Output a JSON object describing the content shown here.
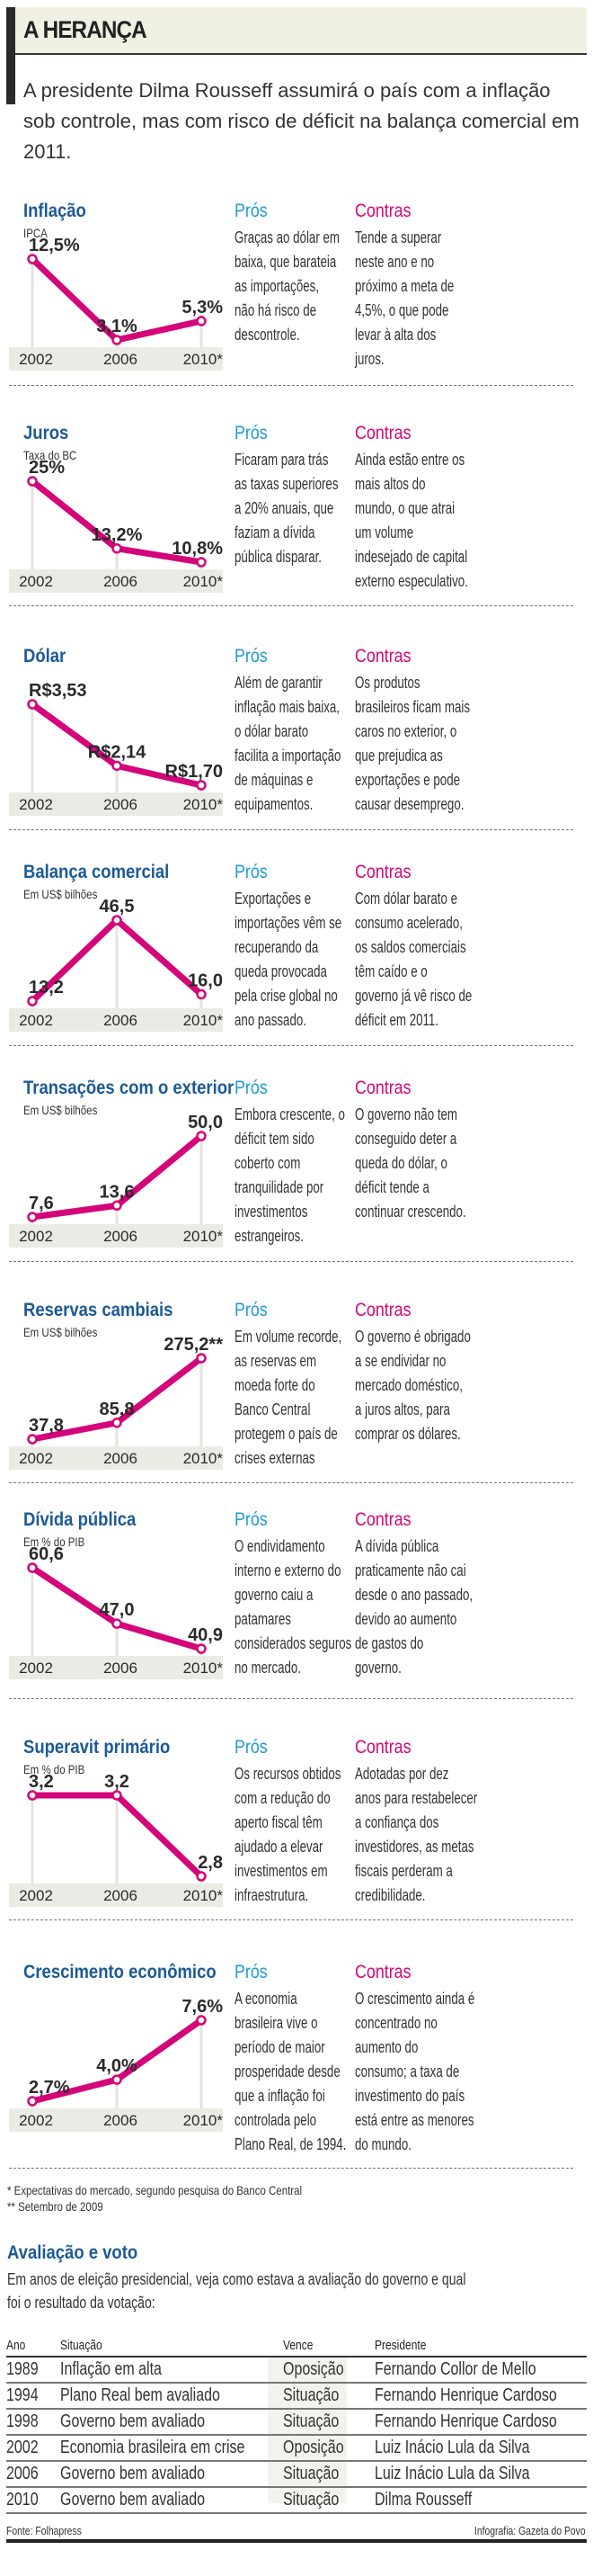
{
  "header": {
    "title": "A HERANÇA",
    "subtitle": "A presidente Dilma Rousseff assumirá o país com a inflação sob controle, mas com risco de déficit na balança comercial em 2011."
  },
  "labels": {
    "pros": "Prós",
    "contras": "Contras"
  },
  "colors": {
    "line": "#d4057a",
    "title": "#1b5a96",
    "pros": "#1d9bd3",
    "contras": "#d4057a",
    "axis_band": "#ebebe5"
  },
  "chart_data": [
    {
      "type": "line",
      "title": "Inflação",
      "subtitle": "IPCA",
      "categories": [
        "2002",
        "2006",
        "2010*"
      ],
      "values": [
        12.5,
        3.1,
        5.3
      ],
      "value_labels": [
        "12,5%",
        "3,1%",
        "5,3%"
      ],
      "pros": [
        "Graças ao dólar em",
        "baixa, que barateia",
        "as importações,",
        "não há risco de",
        "descontrole."
      ],
      "contras": [
        "Tende a superar",
        "neste ano e no",
        "próximo a meta de",
        "4,5%, o que pode",
        "levar à alta dos",
        "juros."
      ]
    },
    {
      "type": "line",
      "title": "Juros",
      "subtitle": "Taxa do BC",
      "categories": [
        "2002",
        "2006",
        "2010*"
      ],
      "values": [
        25,
        13.2,
        10.8
      ],
      "value_labels": [
        "25%",
        "13,2%",
        "10,8%"
      ],
      "pros": [
        "Ficaram para trás",
        "as taxas superiores",
        "a 20% anuais, que",
        "faziam a dívida",
        "pública disparar."
      ],
      "contras": [
        "Ainda estão entre os",
        "mais altos do",
        "mundo, o que atrai",
        "um volume",
        "indesejado de capital",
        "externo especulativo."
      ]
    },
    {
      "type": "line",
      "title": "Dólar",
      "subtitle": "",
      "categories": [
        "2002",
        "2006",
        "2010*"
      ],
      "values": [
        3.53,
        2.14,
        1.7
      ],
      "value_labels": [
        "R$3,53",
        "R$2,14",
        "R$1,70"
      ],
      "pros": [
        "Além de garantir",
        "inflação mais baixa,",
        "o dólar barato",
        "facilita a importação",
        "de máquinas e",
        "equipamentos."
      ],
      "contras": [
        "Os produtos",
        "brasileiros ficam mais",
        "caros no exterior, o",
        "que prejudica as",
        "exportações e pode",
        "causar desemprego."
      ]
    },
    {
      "type": "line",
      "title": "Balança comercial",
      "subtitle": "Em US$ bilhões",
      "categories": [
        "2002",
        "2006",
        "2010*"
      ],
      "values": [
        13.2,
        46.5,
        16.0
      ],
      "value_labels": [
        "13,2",
        "46,5",
        "16,0"
      ],
      "pros": [
        "Exportações e",
        "importações vêm se",
        "recuperando da",
        "queda provocada",
        "pela crise global no",
        "ano passado."
      ],
      "contras": [
        "Com dólar barato e",
        "consumo acelerado,",
        "os saldos comerciais",
        "têm caído e o",
        "governo já vê risco de",
        "déficit em 2011."
      ]
    },
    {
      "type": "line",
      "title": "Transações com o exterior",
      "subtitle": "Em US$ bilhões",
      "categories": [
        "2002",
        "2006",
        "2010*"
      ],
      "values": [
        7.6,
        13.6,
        50.0
      ],
      "value_labels": [
        "7,6",
        "13,6",
        "50,0"
      ],
      "pros": [
        "Embora crescente, o",
        "déficit tem sido",
        "coberto com",
        "tranquilidade por",
        "investimentos",
        "estrangeiros."
      ],
      "contras": [
        "O governo não tem",
        "conseguido deter a",
        "queda do dólar, o",
        "déficit tende a",
        "continuar crescendo."
      ]
    },
    {
      "type": "line",
      "title": "Reservas cambiais",
      "subtitle": "Em US$ bilhões",
      "categories": [
        "2002",
        "2006",
        "2010*"
      ],
      "values": [
        37.8,
        85.8,
        275.2
      ],
      "value_labels": [
        "37,8",
        "85,8",
        "275,2**"
      ],
      "pros": [
        "Em volume recorde,",
        "as reservas em",
        "moeda forte do",
        "Banco Central",
        "protegem o país de",
        "crises externas"
      ],
      "contras": [
        "O governo é obrigado",
        "a se endividar no",
        "mercado doméstico,",
        "a juros altos, para",
        "comprar os dólares."
      ]
    },
    {
      "type": "line",
      "title": "Dívida pública",
      "subtitle": "Em % do PIB",
      "categories": [
        "2002",
        "2006",
        "2010*"
      ],
      "values": [
        60.6,
        47.0,
        40.9
      ],
      "value_labels": [
        "60,6",
        "47,0",
        "40,9"
      ],
      "pros": [
        "O endividamento",
        "interno e externo do",
        "governo caiu a",
        "patamares",
        "considerados seguros",
        "no mercado."
      ],
      "contras": [
        "A dívida pública",
        "praticamente não cai",
        "desde o ano passado,",
        "devido ao aumento",
        "de gastos do",
        "governo."
      ]
    },
    {
      "type": "line",
      "title": "Superavit primário",
      "subtitle": "Em % do PIB",
      "categories": [
        "2002",
        "2006",
        "2010*"
      ],
      "values": [
        3.2,
        3.2,
        2.8
      ],
      "value_labels": [
        "3,2",
        "3,2",
        "2,8"
      ],
      "pros": [
        "Os recursos obtidos",
        "com a redução do",
        "aperto fiscal têm",
        "ajudado a elevar",
        "investimentos em",
        "infraestrutura."
      ],
      "contras": [
        "Adotadas por dez",
        "anos para restabelecer",
        "a confiança dos",
        "investidores, as metas",
        "fiscais perderam a",
        "credibilidade."
      ]
    },
    {
      "type": "line",
      "title": "Crescimento econômico",
      "subtitle": "",
      "categories": [
        "2002",
        "2006",
        "2010*"
      ],
      "values": [
        2.7,
        4.0,
        7.6
      ],
      "value_labels": [
        "2,7%",
        "4,0%",
        "7,6%"
      ],
      "pros": [
        "A economia",
        "brasileira vive o",
        "período de maior",
        "prosperidade desde",
        "que a inflação foi",
        "controlada pelo",
        "Plano Real, de 1994."
      ],
      "contras": [
        "O crescimento ainda é",
        "concentrado no",
        "aumento do",
        "consumo; a taxa de",
        "investimento do país",
        "está entre as menores",
        "do mundo."
      ]
    }
  ],
  "notes": [
    "* Expectativas do mercado, segundo pesquisa do Banco Central",
    "** Setembro de 2009"
  ],
  "avaliacao": {
    "title": "Avaliação e voto",
    "description": [
      "Em anos de eleição presidencial, veja como estava a avaliação do governo e qual",
      "foi o resultado da votação:"
    ],
    "columns": [
      "Ano",
      "Situação",
      "Vence",
      "Presidente"
    ],
    "rows": [
      [
        "1989",
        "Inflação em alta",
        "Oposição",
        "Fernando Collor de Mello"
      ],
      [
        "1994",
        "Plano Real bem avaliado",
        "Situação",
        "Fernando Henrique Cardoso"
      ],
      [
        "1998",
        "Governo bem avaliado",
        "Situação",
        "Fernando Henrique Cardoso"
      ],
      [
        "2002",
        "Economia brasileira em crise",
        "Oposição",
        "Luiz Inácio Lula da Silva"
      ],
      [
        "2006",
        "Governo bem avaliado",
        "Situação",
        "Luiz Inácio Lula da Silva"
      ],
      [
        "2010",
        "Governo bem avaliado",
        "Situação",
        "Dilma Rousseff"
      ]
    ]
  },
  "footer": {
    "source": "Fonte: Folhapress",
    "credit": "Infografia: Gazeta do Povo"
  }
}
